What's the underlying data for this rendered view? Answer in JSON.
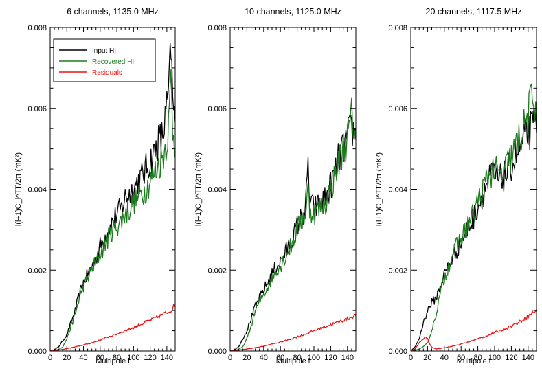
{
  "figure": {
    "xlabel": "Multipole l",
    "ylabel": "l(l+1)C_l^TT/2π (mK²)",
    "x_ticks": [
      "0",
      "20",
      "40",
      "60",
      "80",
      "100",
      "120",
      "140"
    ],
    "y_ticks": [
      "0.000",
      "0.002",
      "0.004",
      "0.006",
      "0.008"
    ]
  },
  "legend": [
    {
      "label": "Input HI",
      "color": "#000000"
    },
    {
      "label": "Recovered HI",
      "color": "#1b7a1b"
    },
    {
      "label": "Residuals",
      "color": "#ee1111"
    }
  ],
  "chart_data": [
    {
      "type": "line",
      "title": "6 channels, 1135.0 MHz",
      "xlabel": "Multipole l",
      "ylabel": "l(l+1)C_l^TT/2π (mK²)",
      "xlim": [
        0,
        150
      ],
      "ylim": [
        0,
        0.008
      ],
      "series": [
        {
          "name": "Input HI",
          "color": "#000000",
          "x": [
            0,
            5,
            10,
            15,
            20,
            25,
            30,
            35,
            40,
            45,
            50,
            55,
            60,
            65,
            70,
            75,
            80,
            85,
            90,
            95,
            100,
            105,
            110,
            115,
            120,
            125,
            130,
            135,
            140,
            143,
            145,
            147,
            150
          ],
          "y": [
            0,
            3e-05,
            0.0001,
            0.00025,
            0.0004,
            0.0007,
            0.001,
            0.0014,
            0.0017,
            0.0019,
            0.0021,
            0.0023,
            0.0026,
            0.0028,
            0.003,
            0.0032,
            0.0034,
            0.0035,
            0.0038,
            0.0039,
            0.004,
            0.0042,
            0.0043,
            0.0045,
            0.0047,
            0.0049,
            0.0052,
            0.0053,
            0.006,
            0.0066,
            0.0076,
            0.0061,
            0.0057
          ]
        },
        {
          "name": "Recovered HI",
          "color": "#1b7a1b",
          "x": [
            0,
            5,
            10,
            15,
            20,
            25,
            30,
            35,
            40,
            45,
            50,
            55,
            60,
            65,
            70,
            75,
            80,
            85,
            90,
            95,
            100,
            105,
            110,
            115,
            120,
            125,
            130,
            135,
            140,
            143,
            145,
            147,
            150
          ],
          "y": [
            0,
            1e-05,
            4e-05,
            0.0001,
            0.0003,
            0.0006,
            0.0009,
            0.0013,
            0.0016,
            0.0018,
            0.002,
            0.0022,
            0.0024,
            0.0026,
            0.0028,
            0.003,
            0.0031,
            0.0032,
            0.0034,
            0.0035,
            0.0037,
            0.0038,
            0.0039,
            0.004,
            0.0042,
            0.0044,
            0.0046,
            0.0048,
            0.0052,
            0.0058,
            0.0068,
            0.0055,
            0.0052
          ]
        },
        {
          "name": "Residuals",
          "color": "#ee1111",
          "x": [
            0,
            10,
            20,
            30,
            40,
            50,
            60,
            70,
            80,
            90,
            100,
            110,
            120,
            130,
            140,
            145,
            150
          ],
          "y": [
            0,
            2e-05,
            6e-05,
            0.0001,
            0.00015,
            0.0002,
            0.00027,
            0.00035,
            0.00042,
            0.0005,
            0.00058,
            0.00067,
            0.00076,
            0.00085,
            0.00095,
            0.001,
            0.00115
          ]
        }
      ]
    },
    {
      "type": "line",
      "title": "10 channels, 1125.0 MHz",
      "xlabel": "Multipole l",
      "ylabel": "l(l+1)C_l^TT/2π (mK²)",
      "xlim": [
        0,
        150
      ],
      "ylim": [
        0,
        0.008
      ],
      "series": [
        {
          "name": "Input HI",
          "color": "#000000",
          "x": [
            0,
            5,
            10,
            15,
            20,
            25,
            30,
            35,
            40,
            45,
            50,
            55,
            60,
            65,
            70,
            75,
            80,
            85,
            90,
            93,
            95,
            100,
            105,
            110,
            115,
            120,
            125,
            130,
            135,
            140,
            145,
            150
          ],
          "y": [
            0,
            3e-05,
            0.0001,
            0.0003,
            0.0005,
            0.0008,
            0.0011,
            0.0013,
            0.0015,
            0.0017,
            0.0019,
            0.0021,
            0.0022,
            0.0024,
            0.0026,
            0.0028,
            0.0031,
            0.0033,
            0.0035,
            0.0046,
            0.0037,
            0.0035,
            0.0036,
            0.0037,
            0.0038,
            0.0041,
            0.0044,
            0.0048,
            0.005,
            0.0053,
            0.0055,
            0.0053
          ]
        },
        {
          "name": "Recovered HI",
          "color": "#1b7a1b",
          "x": [
            0,
            5,
            10,
            15,
            20,
            25,
            30,
            35,
            40,
            45,
            50,
            55,
            60,
            65,
            70,
            75,
            80,
            85,
            90,
            93,
            95,
            100,
            105,
            110,
            115,
            120,
            125,
            130,
            135,
            140,
            145,
            150
          ],
          "y": [
            0,
            1e-05,
            4e-05,
            0.0001,
            0.0003,
            0.0006,
            0.001,
            0.0012,
            0.0014,
            0.0016,
            0.0018,
            0.002,
            0.0021,
            0.0023,
            0.0025,
            0.0027,
            0.003,
            0.0032,
            0.0034,
            0.004,
            0.0035,
            0.0034,
            0.0035,
            0.0036,
            0.0037,
            0.004,
            0.0043,
            0.0047,
            0.005,
            0.0052,
            0.0058,
            0.0054
          ]
        },
        {
          "name": "Residuals",
          "color": "#ee1111",
          "x": [
            0,
            10,
            20,
            30,
            40,
            50,
            60,
            70,
            80,
            90,
            100,
            110,
            120,
            130,
            140,
            150
          ],
          "y": [
            0,
            2e-05,
            5e-05,
            8e-05,
            0.00012,
            0.00017,
            0.00022,
            0.00028,
            0.00035,
            0.00042,
            0.0005,
            0.00058,
            0.00065,
            0.00072,
            0.0008,
            0.00088
          ]
        }
      ]
    },
    {
      "type": "line",
      "title": "20 channels, 1117.5 MHz",
      "xlabel": "Multipole l",
      "ylabel": "l(l+1)C_l^TT/2π (mK²)",
      "xlim": [
        0,
        150
      ],
      "ylim": [
        0,
        0.008
      ],
      "series": [
        {
          "name": "Input HI",
          "color": "#000000",
          "x": [
            0,
            5,
            10,
            15,
            20,
            25,
            30,
            35,
            40,
            45,
            50,
            55,
            60,
            65,
            70,
            75,
            80,
            85,
            90,
            95,
            100,
            105,
            110,
            115,
            120,
            125,
            130,
            135,
            140,
            145,
            150
          ],
          "y": [
            0,
            0.0001,
            0.0003,
            0.0007,
            0.001,
            0.0012,
            0.0013,
            0.0016,
            0.0019,
            0.0021,
            0.0023,
            0.0025,
            0.0027,
            0.0029,
            0.0031,
            0.0033,
            0.0036,
            0.0038,
            0.0041,
            0.0043,
            0.0044,
            0.0042,
            0.0043,
            0.0044,
            0.0046,
            0.0048,
            0.005,
            0.0052,
            0.0054,
            0.0055,
            0.0058
          ]
        },
        {
          "name": "Recovered HI",
          "color": "#1b7a1b",
          "x": [
            0,
            5,
            10,
            15,
            20,
            25,
            30,
            35,
            40,
            45,
            50,
            55,
            60,
            65,
            70,
            75,
            80,
            85,
            90,
            95,
            100,
            105,
            110,
            115,
            120,
            125,
            130,
            135,
            140,
            145,
            150
          ],
          "y": [
            0,
            1e-05,
            5e-05,
            0.0001,
            0.0002,
            0.0005,
            0.0009,
            0.0014,
            0.0018,
            0.0021,
            0.0024,
            0.0026,
            0.0028,
            0.003,
            0.0032,
            0.0034,
            0.0037,
            0.0039,
            0.0042,
            0.0044,
            0.0045,
            0.0043,
            0.0044,
            0.0046,
            0.0048,
            0.005,
            0.0053,
            0.0055,
            0.0058,
            0.0063,
            0.0061
          ]
        },
        {
          "name": "Residuals",
          "color": "#ee1111",
          "x": [
            0,
            5,
            10,
            15,
            18,
            20,
            23,
            26,
            30,
            40,
            50,
            60,
            70,
            80,
            90,
            100,
            110,
            120,
            130,
            140,
            145,
            150
          ],
          "y": [
            0,
            5e-05,
            0.0002,
            0.0003,
            0.00035,
            0.0003,
            0.00015,
            8e-05,
            5e-05,
            8e-05,
            0.00012,
            0.00017,
            0.00023,
            0.0003,
            0.00037,
            0.00045,
            0.00053,
            0.00062,
            0.00072,
            0.00085,
            0.00095,
            0.001
          ]
        }
      ]
    }
  ]
}
